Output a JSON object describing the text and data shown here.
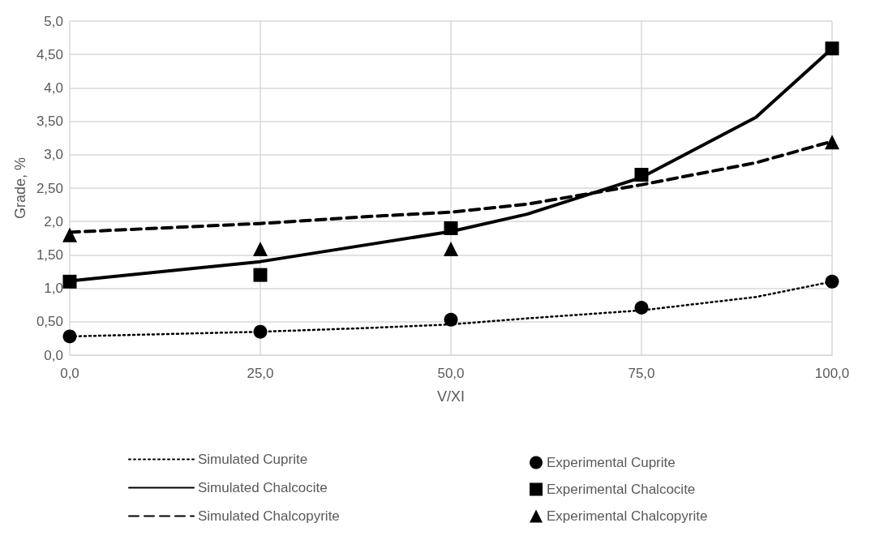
{
  "chart_data": {
    "type": "line",
    "xlabel": "V/XI",
    "ylabel": "Grade, %",
    "xlim": [
      0,
      100
    ],
    "xticks": [
      {
        "value": 0,
        "label": "0,0"
      },
      {
        "value": 25,
        "label": "25,0"
      },
      {
        "value": 50,
        "label": "50,0"
      },
      {
        "value": 75,
        "label": "75,0"
      },
      {
        "value": 100,
        "label": "100,0"
      }
    ],
    "ylim": [
      0,
      5
    ],
    "yticks": [
      {
        "value": 0,
        "label": "0,0"
      },
      {
        "value": 0.5,
        "label": "0,50"
      },
      {
        "value": 1,
        "label": "1,0"
      },
      {
        "value": 1.5,
        "label": "1,50"
      },
      {
        "value": 2,
        "label": "2,0"
      },
      {
        "value": 2.5,
        "label": "2,50"
      },
      {
        "value": 3,
        "label": "3,0"
      },
      {
        "value": 3.5,
        "label": "3,50"
      },
      {
        "value": 4,
        "label": "4,0"
      },
      {
        "value": 4.5,
        "label": "4,50"
      },
      {
        "value": 5,
        "label": "5,0"
      }
    ],
    "grid": true,
    "legend": "bottom",
    "series": [
      {
        "name": "Simulated Cuprite",
        "color": "#000000",
        "line_style": "dotted",
        "marker": "none",
        "x": [
          0,
          25,
          40,
          50,
          60,
          75,
          90,
          100
        ],
        "values": [
          0.28,
          0.35,
          0.41,
          0.46,
          0.55,
          0.67,
          0.87,
          1.1
        ]
      },
      {
        "name": "Simulated Chalcocite",
        "color": "#000000",
        "line_style": "solid",
        "marker": "none",
        "x": [
          0,
          25,
          40,
          50,
          60,
          75,
          90,
          100
        ],
        "values": [
          1.11,
          1.4,
          1.67,
          1.85,
          2.11,
          2.66,
          3.56,
          4.59
        ]
      },
      {
        "name": "Simulated Chalcopyrite",
        "color": "#000000",
        "line_style": "dashed",
        "marker": "none",
        "x": [
          0,
          25,
          40,
          50,
          60,
          75,
          90,
          100
        ],
        "values": [
          1.84,
          1.97,
          2.08,
          2.14,
          2.26,
          2.55,
          2.88,
          3.2
        ]
      },
      {
        "name": "Experimental Cuprite",
        "type": "scatter",
        "color": "#000000",
        "marker": "circle",
        "x": [
          0,
          25,
          50,
          75,
          100
        ],
        "values": [
          0.28,
          0.35,
          0.53,
          0.71,
          1.1
        ]
      },
      {
        "name": "Experimental Chalcocite",
        "type": "scatter",
        "color": "#000000",
        "marker": "square",
        "x": [
          0,
          25,
          50,
          75,
          100
        ],
        "values": [
          1.1,
          1.2,
          1.9,
          2.7,
          4.59
        ]
      },
      {
        "name": "Experimental Chalcopyrite",
        "type": "scatter",
        "color": "#000000",
        "marker": "triangle",
        "x": [
          0,
          25,
          50,
          75,
          100
        ],
        "values": [
          1.8,
          1.59,
          1.59,
          null,
          3.19
        ]
      }
    ]
  }
}
